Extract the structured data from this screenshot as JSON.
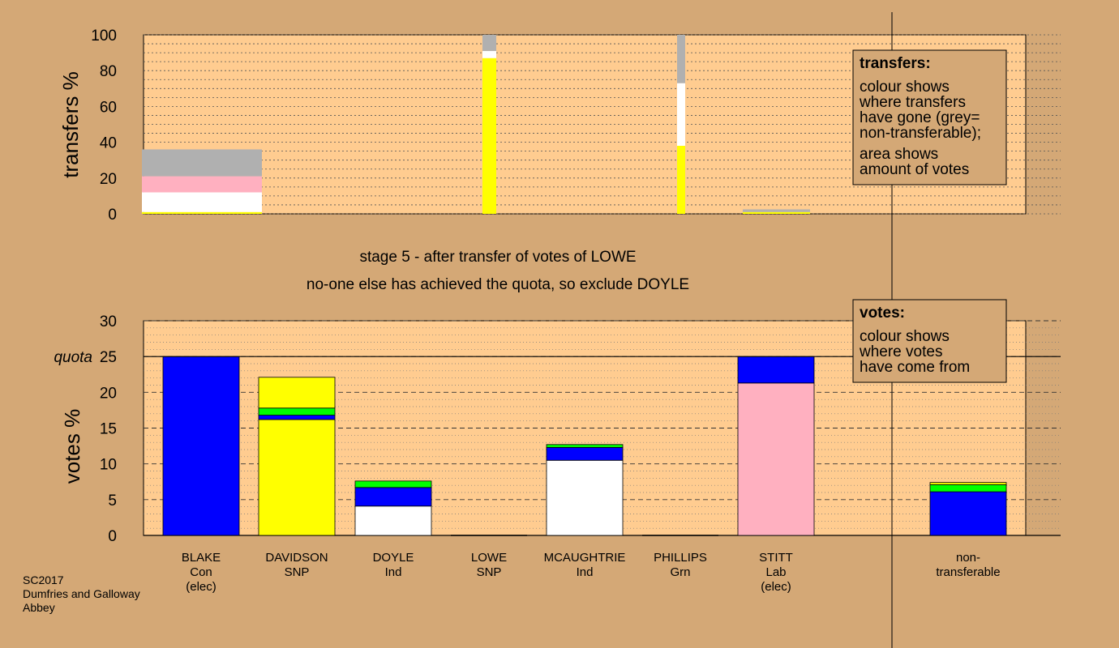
{
  "chart_data": [
    {
      "type": "bar",
      "stacked": true,
      "ylabel": "transfers %",
      "ylim": [
        0,
        100
      ],
      "yticks": [
        0,
        20,
        40,
        60,
        80,
        100
      ],
      "bars": [
        {
          "candidate": "BLAKE",
          "segments": [
            {
              "color": "#ffff00",
              "value": 1
            },
            {
              "color": "#ffffff",
              "value": 11
            },
            {
              "color": "#ffb0c0",
              "value": 9
            },
            {
              "color": "#b0b0b0",
              "value": 15
            }
          ]
        },
        {
          "candidate": "LOWE",
          "segments": [
            {
              "color": "#ffff00",
              "value": 87
            },
            {
              "color": "#ffffff",
              "value": 4
            },
            {
              "color": "#b0b0b0",
              "value": 9
            }
          ]
        },
        {
          "candidate": "PHILLIPS",
          "segments": [
            {
              "color": "#ffff00",
              "value": 38
            },
            {
              "color": "#ffffff",
              "value": 35
            },
            {
              "color": "#b0b0b0",
              "value": 27
            }
          ]
        },
        {
          "candidate": "STITT",
          "segments": [
            {
              "color": "#ffff00",
              "value": 1
            },
            {
              "color": "#b0b0b0",
              "value": 1.5
            }
          ]
        }
      ]
    },
    {
      "type": "bar",
      "stacked": true,
      "ylabel": "votes %",
      "ylim": [
        0,
        30
      ],
      "yticks": [
        0,
        5,
        10,
        15,
        20,
        25,
        30
      ],
      "quota": {
        "label": "quota",
        "value": 25
      },
      "bars": [
        {
          "candidate": "BLAKE",
          "party": "Con",
          "note": "(elec)",
          "segments": [
            {
              "color": "#0000ff",
              "value": 25
            }
          ]
        },
        {
          "candidate": "DAVIDSON",
          "party": "SNP",
          "note": "",
          "segments": [
            {
              "color": "#ffff00",
              "value": 16.2
            },
            {
              "color": "#0000ff",
              "value": 0.6
            },
            {
              "color": "#00ff00",
              "value": 1.0
            },
            {
              "color": "#ffff00",
              "value": 4.3
            }
          ]
        },
        {
          "candidate": "DOYLE",
          "party": "Ind",
          "note": "",
          "segments": [
            {
              "color": "#ffffff",
              "value": 4.1
            },
            {
              "color": "#0000ff",
              "value": 2.6
            },
            {
              "color": "#00ff00",
              "value": 0.9
            }
          ]
        },
        {
          "candidate": "LOWE",
          "party": "SNP",
          "note": "",
          "segments": []
        },
        {
          "candidate": "MCAUGHTRIE",
          "party": "Ind",
          "note": "",
          "segments": [
            {
              "color": "#ffffff",
              "value": 10.5
            },
            {
              "color": "#0000ff",
              "value": 1.8
            },
            {
              "color": "#00ff00",
              "value": 0.4
            }
          ]
        },
        {
          "candidate": "PHILLIPS",
          "party": "Grn",
          "note": "",
          "segments": []
        },
        {
          "candidate": "STITT",
          "party": "Lab",
          "note": "(elec)",
          "segments": [
            {
              "color": "#ffb0c0",
              "value": 21.3
            },
            {
              "color": "#0000ff",
              "value": 3.7
            }
          ]
        },
        {
          "candidate": "non-",
          "party": "transferable",
          "note": "",
          "segments": [
            {
              "color": "#0000ff",
              "value": 6.1
            },
            {
              "color": "#00ff00",
              "value": 1.0
            },
            {
              "color": "#ffff00",
              "value": 0.3
            }
          ]
        }
      ]
    }
  ],
  "stage": {
    "line1": "stage 5 - after transfer of votes of LOWE",
    "line2": "no-one else has achieved the quota, so exclude DOYLE"
  },
  "legend_transfers": {
    "title": "transfers:",
    "lines": [
      "colour shows",
      "where transfers",
      "have gone (grey=",
      "non-transferable);",
      "area shows",
      "amount of votes"
    ]
  },
  "legend_votes": {
    "title": "votes:",
    "lines": [
      "colour shows",
      "where votes",
      "have come from"
    ]
  },
  "credit": {
    "line1": "SC2017",
    "line2": "Dumfries and Galloway",
    "line3": "Abbey"
  },
  "colors": {
    "background": "#d4a876",
    "plot_area": "#ffcc90",
    "grey": "#b0b0b0"
  }
}
